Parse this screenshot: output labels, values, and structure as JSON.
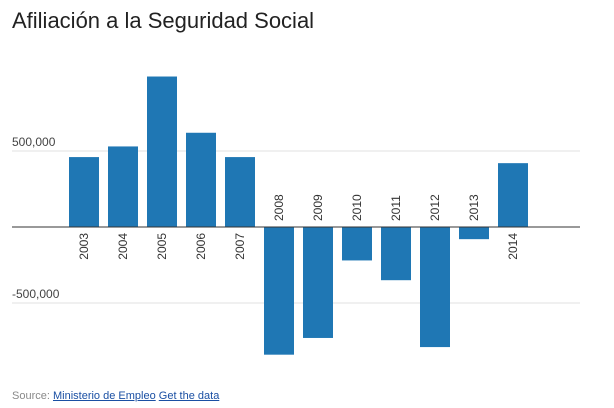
{
  "chart_data": {
    "type": "bar",
    "title": "Afiliación a la Seguridad Social",
    "xlabel": "",
    "ylabel": "",
    "categories": [
      "2003",
      "2004",
      "2005",
      "2006",
      "2007",
      "2008",
      "2009",
      "2010",
      "2011",
      "2012",
      "2013",
      "2014"
    ],
    "values": [
      460000,
      530000,
      990000,
      620000,
      460000,
      -840000,
      -730000,
      -220000,
      -350000,
      -790000,
      -80000,
      420000
    ],
    "ylim": [
      -850000,
      1000000
    ],
    "y_ticks": [
      {
        "value": 500000,
        "label": "500,000"
      },
      {
        "value": -500000,
        "label": "-500,000"
      }
    ],
    "bar_color": "#1f77b4",
    "grid": true,
    "legend": "none"
  },
  "footer": {
    "source_label": "Source:",
    "source_link": "Ministerio de Empleo",
    "data_link": "Get the data"
  },
  "colors": {
    "bar": "#1f77b4",
    "grid": "#e0e0e0",
    "axis": "#333333",
    "link": "#1a4fa3"
  }
}
